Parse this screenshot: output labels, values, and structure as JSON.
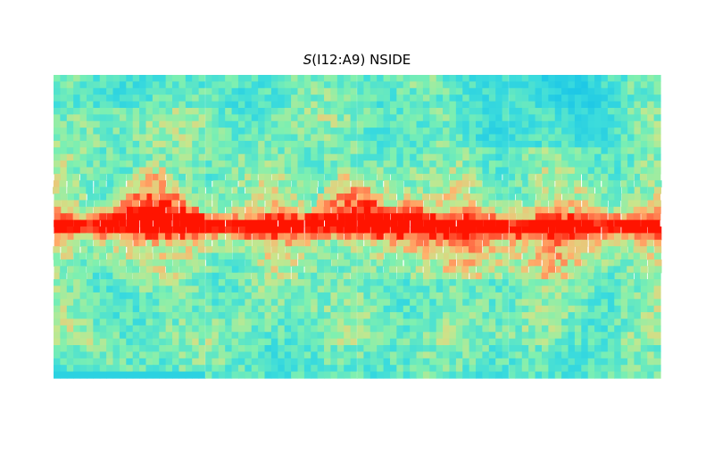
{
  "chart_data": {
    "type": "heatmap",
    "title_symbol": "S",
    "title_rest": "(I12:A9) NSIDE",
    "xlabel": "",
    "ylabel": "",
    "projection": "cartesian",
    "colormap": "rainbow",
    "colorbar": false,
    "grid": false,
    "lon_range": [
      -180,
      180
    ],
    "lat_range": [
      -90,
      90
    ],
    "ridge_peaks": [
      {
        "lon": -122,
        "lat": 42,
        "width": 38
      },
      {
        "lon": -5,
        "lat": 41,
        "width": 30
      },
      {
        "lon": 30,
        "lat": 22,
        "width": 22
      }
    ],
    "band_center_lat": 0,
    "band_width": 6,
    "seam_lons": [
      -90,
      0,
      90
    ],
    "colors": {
      "background_pale": "#7ff0b0",
      "band_red": "#ff1a00",
      "mid_orange": "#ff9a5a",
      "low_cyan": "#36d8df"
    }
  }
}
